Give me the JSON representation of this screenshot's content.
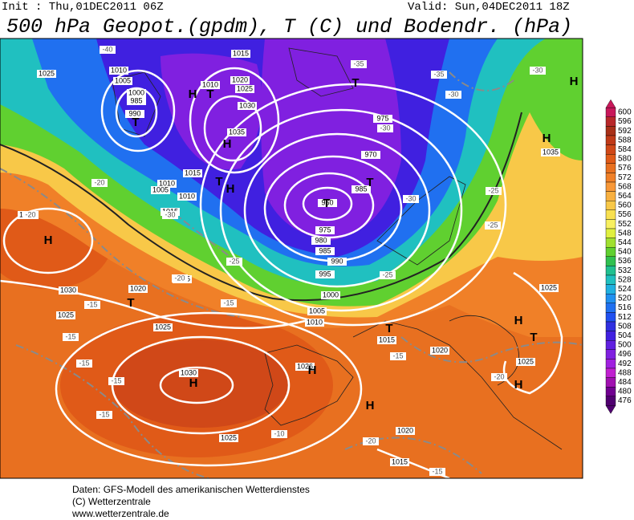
{
  "header": {
    "init": "Init : Thu,01DEC2011 06Z",
    "valid": "Valid: Sun,04DEC2011 18Z",
    "title": "500 hPa Geopot.(gpdm), T (C) und Bodendr. (hPa)"
  },
  "colorbar": {
    "values": [
      600,
      596,
      592,
      588,
      584,
      580,
      576,
      572,
      568,
      564,
      560,
      556,
      552,
      548,
      544,
      540,
      536,
      532,
      528,
      524,
      520,
      516,
      512,
      508,
      504,
      500,
      496,
      492,
      488,
      484,
      480,
      476
    ],
    "colors": [
      "#c8185a",
      "#b8282a",
      "#a83018",
      "#c03a18",
      "#d04818",
      "#e05a18",
      "#e87020",
      "#f08028",
      "#f89838",
      "#f8b040",
      "#f8c848",
      "#f8e050",
      "#f8f060",
      "#e0f040",
      "#a0e030",
      "#60d030",
      "#30c050",
      "#20c090",
      "#20c0c0",
      "#20b0e0",
      "#2090f0",
      "#2070f0",
      "#2050f0",
      "#3030e0",
      "#4020e0",
      "#6020e0",
      "#8020e0",
      "#a020e0",
      "#c020d0",
      "#a010b0",
      "#700090",
      "#500070"
    ]
  },
  "map": {
    "pressure_centers": [
      "H",
      "T",
      "T",
      "H",
      "T",
      "H",
      "T",
      "H",
      "H",
      "T",
      "T",
      "H",
      "T",
      "H",
      "H",
      "T",
      "H",
      "T",
      "H",
      "H"
    ],
    "isobar_labels": [
      "1015",
      "1010",
      "1005",
      "1000",
      "985",
      "990",
      "1025",
      "1035",
      "1030",
      "1020",
      "1025",
      "1010",
      "1015",
      "1010",
      "1005",
      "1010",
      "1015",
      "975",
      "970",
      "985",
      "960",
      "975",
      "980",
      "985",
      "990",
      "995",
      "1000",
      "1005",
      "1010",
      "1035",
      "1030",
      "1025",
      "1020",
      "1025",
      "1025",
      "1030",
      "1026",
      "1025",
      "1015",
      "1020",
      "1025",
      "1025",
      "1035",
      "1015",
      "1020"
    ],
    "temperature_labels": [
      "-40",
      "-35",
      "-35",
      "-30",
      "-30",
      "-30",
      "-20",
      "-20",
      "-30",
      "-25",
      "-20",
      "-15",
      "-15",
      "-15",
      "-15",
      "-15",
      "-15",
      "-10",
      "-20",
      "-15",
      "-15",
      "-20",
      "-25",
      "-25",
      "-25",
      "-30"
    ]
  },
  "footer": {
    "source": "Daten: GFS-Modell des amerikanischen Wetterdienstes",
    "copyright": "(C) Wetterzentrale",
    "url": "www.wetterzentrale.de"
  }
}
